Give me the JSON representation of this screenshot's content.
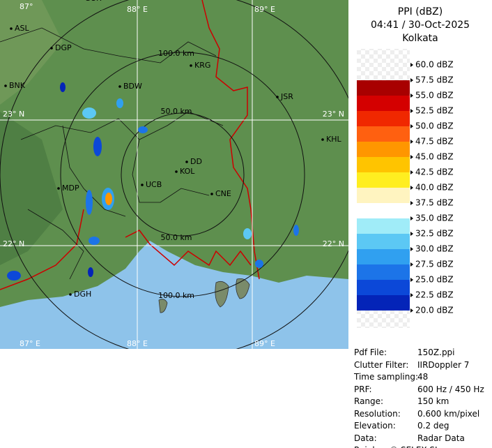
{
  "map": {
    "grid_labels": [
      "87°",
      "88° E",
      "89° E",
      "23° N",
      "23° N",
      "22° N",
      "22° N",
      "87° E",
      "88° E",
      "89° E"
    ],
    "range_labels": [
      "100.0 km",
      "50.0 km",
      "50.0 km",
      "100.0 km"
    ],
    "cities": [
      "SUR",
      "ASL",
      "DGP",
      "KRG",
      "BNK",
      "BDW",
      "JSR",
      "KHL",
      "DD",
      "KOL",
      "MDP",
      "UCB",
      "CNE",
      "DGH"
    ]
  },
  "panel": {
    "title": "PPI (dBZ)",
    "time": "04:41 / 30-Oct-2025",
    "site": "Kolkata",
    "legend": [
      {
        "label": "60.0 dBZ",
        "color": "none"
      },
      {
        "label": "57.5 dBZ",
        "color": "#a80000"
      },
      {
        "label": "55.0 dBZ",
        "color": "#d40000"
      },
      {
        "label": "52.5 dBZ",
        "color": "#f02800"
      },
      {
        "label": "50.0 dBZ",
        "color": "#ff6010"
      },
      {
        "label": "47.5 dBZ",
        "color": "#ff9600"
      },
      {
        "label": "45.0 dBZ",
        "color": "#ffc400"
      },
      {
        "label": "42.5 dBZ",
        "color": "#ffee20"
      },
      {
        "label": "40.0 dBZ",
        "color": "#fff4c0"
      },
      {
        "label": "37.5 dBZ",
        "color": "#ffffff"
      },
      {
        "label": "35.0 dBZ",
        "color": "#a0ecf8"
      },
      {
        "label": "32.5 dBZ",
        "color": "#5cc8f4"
      },
      {
        "label": "30.0 dBZ",
        "color": "#30a0f0"
      },
      {
        "label": "27.5 dBZ",
        "color": "#1c74e8"
      },
      {
        "label": "25.0 dBZ",
        "color": "#0c48d8"
      },
      {
        "label": "22.5 dBZ",
        "color": "#0424b8"
      },
      {
        "label": "20.0 dBZ",
        "color": "#000c90"
      }
    ],
    "info": [
      [
        "Pdf File:",
        "150Z.ppi"
      ],
      [
        "Clutter Filter:",
        "IIRDoppler 7"
      ],
      [
        "Time sampling:",
        "48"
      ],
      [
        "PRF:",
        "600 Hz / 450 Hz"
      ],
      [
        "Range:",
        "150 km"
      ],
      [
        "Resolution:",
        "0.600 km/pixel"
      ],
      [
        "Elevation:",
        "0.2 deg"
      ],
      [
        "Data:",
        "Radar Data"
      ]
    ],
    "footer": "Rainbow® SELEX-SI"
  }
}
